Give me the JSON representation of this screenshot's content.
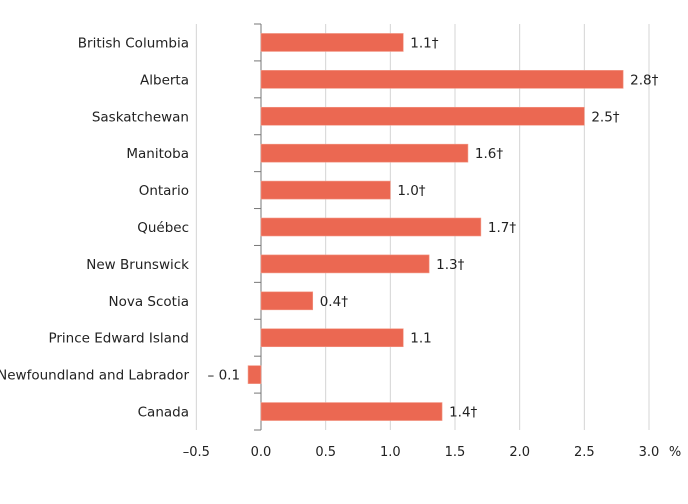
{
  "chart_data": {
    "type": "bar",
    "orientation": "horizontal",
    "categories": [
      "British Columbia",
      "Alberta",
      "Saskatchewan",
      "Manitoba",
      "Ontario",
      "Québec",
      "New Brunswick",
      "Nova Scotia",
      "Prince Edward Island",
      "Newfoundland and Labrador",
      "Canada"
    ],
    "values": [
      1.1,
      2.8,
      2.5,
      1.6,
      1.0,
      1.7,
      1.3,
      0.4,
      1.1,
      -0.1,
      1.4
    ],
    "data_labels": [
      "1.1†",
      "2.8†",
      "2.5†",
      "1.6†",
      "1.0†",
      "1.7†",
      "1.3†",
      "0.4†",
      "1.1",
      "– 0.1",
      "1.4†"
    ],
    "xlim": [
      -0.5,
      3.0
    ],
    "xticks": [
      -0.5,
      0.0,
      0.5,
      1.0,
      1.5,
      2.0,
      2.5,
      3.0
    ],
    "xtick_labels": [
      "–0.5",
      "0.0",
      "0.5",
      "1.0",
      "1.5",
      "2.0",
      "2.5",
      "3.0"
    ],
    "xunit": "%",
    "grid": "vertical",
    "bar_color": "#EB6852"
  }
}
